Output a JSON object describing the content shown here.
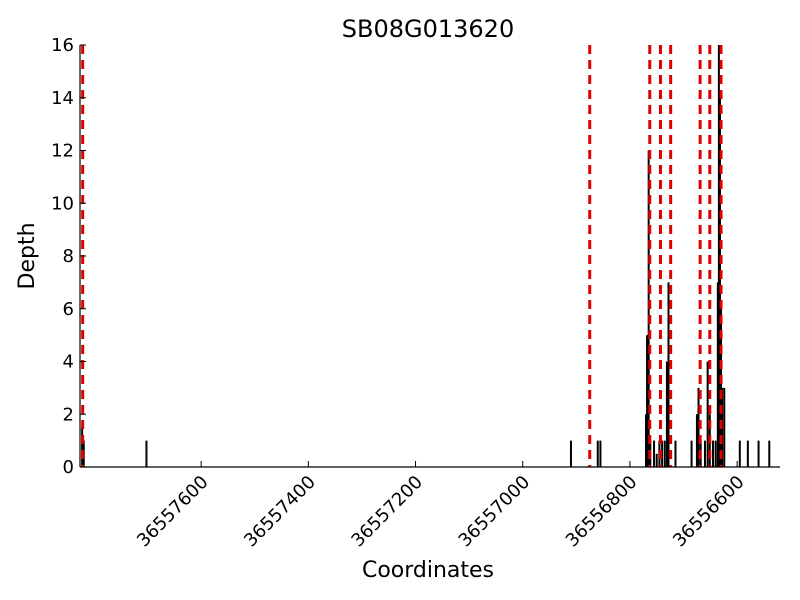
{
  "chart_data": {
    "type": "bar",
    "title": "SB08G013620",
    "xlabel": "Coordinates",
    "ylabel": "Depth",
    "xlim": [
      36557826,
      36556520
    ],
    "ylim": [
      0,
      16
    ],
    "x_inverted": true,
    "grid": false,
    "xticks": [
      36557600,
      36557400,
      36557200,
      36557000,
      36556800,
      36556600
    ],
    "yticks": [
      0,
      2,
      4,
      6,
      8,
      10,
      12,
      14,
      16
    ],
    "bar_color": "#000000",
    "marker_color": "#e00000",
    "bars": [
      {
        "x": 36557822,
        "y": 1.5
      },
      {
        "x": 36557819,
        "y": 1
      },
      {
        "x": 36557702,
        "y": 1
      },
      {
        "x": 36556910,
        "y": 1
      },
      {
        "x": 36556860,
        "y": 1
      },
      {
        "x": 36556855,
        "y": 1
      },
      {
        "x": 36556770,
        "y": 2
      },
      {
        "x": 36556768,
        "y": 5
      },
      {
        "x": 36556765,
        "y": 12
      },
      {
        "x": 36556762,
        "y": 1
      },
      {
        "x": 36556755,
        "y": 1
      },
      {
        "x": 36556750,
        "y": 0.5
      },
      {
        "x": 36556745,
        "y": 1
      },
      {
        "x": 36556740,
        "y": 1
      },
      {
        "x": 36556735,
        "y": 1
      },
      {
        "x": 36556731,
        "y": 4
      },
      {
        "x": 36556728,
        "y": 7
      },
      {
        "x": 36556715,
        "y": 1
      },
      {
        "x": 36556685,
        "y": 1
      },
      {
        "x": 36556675,
        "y": 2
      },
      {
        "x": 36556672,
        "y": 3
      },
      {
        "x": 36556668,
        "y": 1
      },
      {
        "x": 36556660,
        "y": 1
      },
      {
        "x": 36556655,
        "y": 4
      },
      {
        "x": 36556651,
        "y": 2
      },
      {
        "x": 36556645,
        "y": 1
      },
      {
        "x": 36556640,
        "y": 1
      },
      {
        "x": 36556636,
        "y": 7
      },
      {
        "x": 36556634,
        "y": 16
      },
      {
        "x": 36556632,
        "y": 14
      },
      {
        "x": 36556630,
        "y": 6
      },
      {
        "x": 36556628,
        "y": 3
      },
      {
        "x": 36556624,
        "y": 3
      },
      {
        "x": 36556595,
        "y": 1
      },
      {
        "x": 36556580,
        "y": 1
      },
      {
        "x": 36556560,
        "y": 1
      },
      {
        "x": 36556540,
        "y": 1
      }
    ],
    "markers": [
      36557821,
      36556875,
      36556763,
      36556743,
      36556724,
      36556669,
      36556651,
      36556630
    ]
  }
}
